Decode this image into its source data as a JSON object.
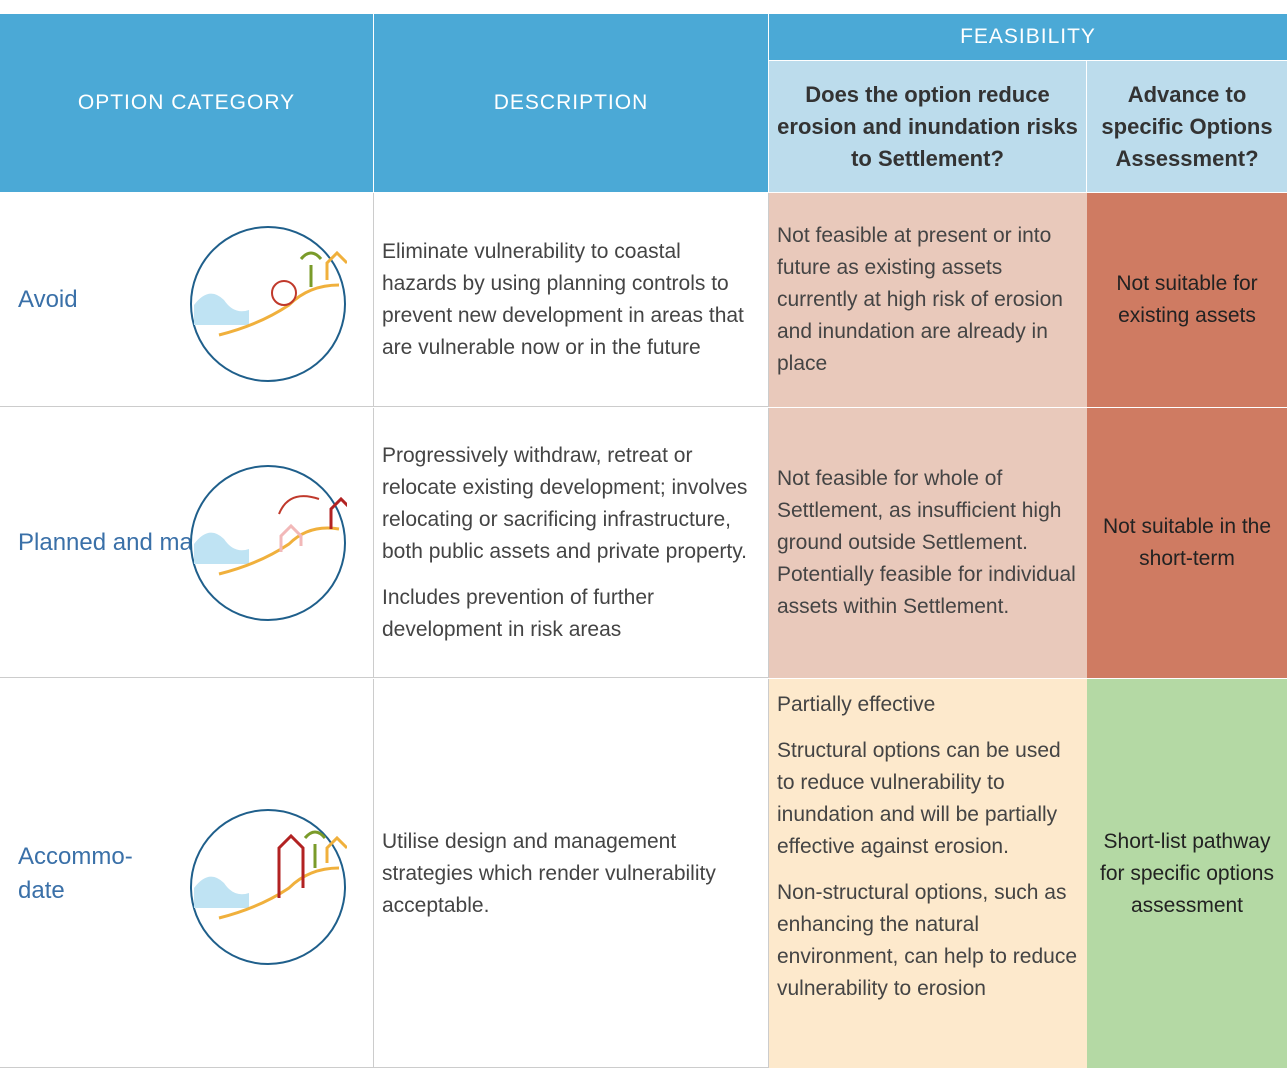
{
  "header": {
    "option_category": "OPTION CATEGORY",
    "description": "DESCRIPTION",
    "feasibility": "FEASIBILITY",
    "question_reduce": "Does the option reduce erosion and inundation risks to Settlement?",
    "question_advance": "Advance to specific Options Assessment?"
  },
  "rows": [
    {
      "category": "Avoid",
      "description": [
        "Eliminate vulnerability to coastal hazards by using planning controls to prevent new development in areas that are vulnerable now or in the future"
      ],
      "feasibility": [
        "Not feasible at present or into future as existing assets currently at high risk of erosion and inundation are already in place"
      ],
      "advance": "Not suitable for existing assets"
    },
    {
      "category": "Planned and managed retreat",
      "description": [
        "Progressively withdraw, retreat  or relocate existing development; involves relocating or sacrificing infrastructure, both public assets and private property.",
        "Includes prevention of further development in risk areas"
      ],
      "feasibility": [
        "Not feasible for whole of Settlement, as insufficient high ground outside Settlement. Potentially feasible for individual assets within Settlement."
      ],
      "advance": "Not suitable in the short-term"
    },
    {
      "category": "Accommo-\ndate",
      "description": [
        "Utilise design and management strategies which render vulnerability acceptable."
      ],
      "feasibility": [
        "Partially effective",
        "Structural options can be used to reduce vulnerability to inundation and will be partially effective against erosion.",
        "Non-structural options, such as enhancing the natural environment, can help to reduce vulnerability to erosion"
      ],
      "advance": "Short-list pathway for specific options assessment"
    }
  ]
}
